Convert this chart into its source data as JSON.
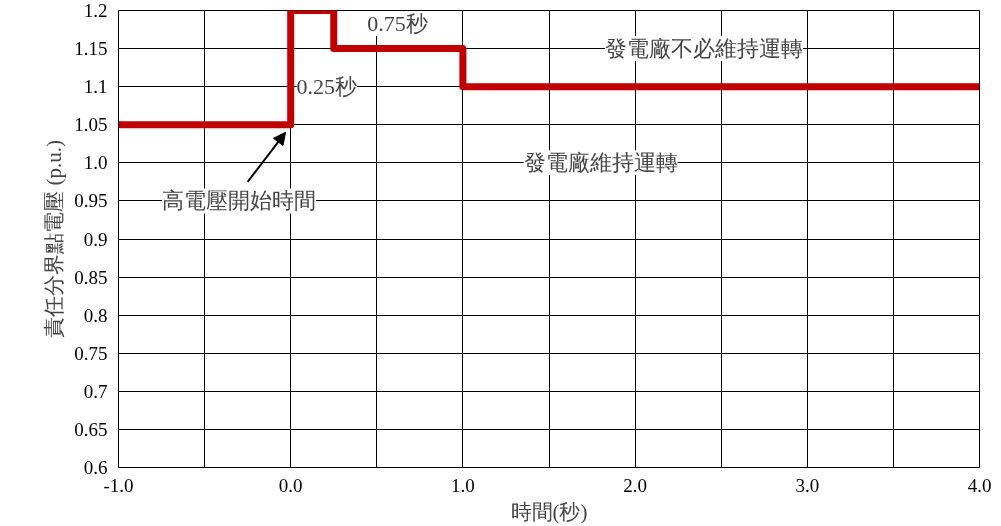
{
  "chart_data": {
    "type": "step",
    "xlabel": "時間(秒)",
    "ylabel": "責任分界點電壓 (p.u.)",
    "x": [
      -1,
      0,
      0.25,
      1,
      4
    ],
    "series": [
      {
        "color": "#c00000",
        "values": [
          1.05,
          1.2,
          1.15,
          1.1,
          1.1
        ]
      }
    ],
    "xlim": [
      -1,
      4
    ],
    "xticks": [
      {
        "value": -1,
        "label": "-1.0"
      },
      {
        "value": -0.5,
        "label": null
      },
      {
        "value": 0,
        "label": "0.0"
      },
      {
        "value": 0.5,
        "label": null
      },
      {
        "value": 1,
        "label": "1.0"
      },
      {
        "value": 1.5,
        "label": null
      },
      {
        "value": 2,
        "label": "2.0"
      },
      {
        "value": 2.5,
        "label": null
      },
      {
        "value": 3,
        "label": "3.0"
      },
      {
        "value": 3.5,
        "label": null
      },
      {
        "value": 4,
        "label": "4.0"
      }
    ],
    "ylim": [
      0.6,
      1.2
    ],
    "yticks": [
      0.6,
      0.65,
      0.7,
      0.75,
      0.8,
      0.85,
      0.9,
      0.95,
      {
        "value": 1.0,
        "label": "1.0"
      },
      1.05,
      1.1,
      1.15,
      1.2
    ],
    "grid": true,
    "marker": "none",
    "line_style": "solid",
    "annotations": [
      "0.75秒",
      "0.25秒",
      "發電廠不必維持運轉",
      "發電廠維持運轉",
      "高電壓開始時間"
    ]
  }
}
